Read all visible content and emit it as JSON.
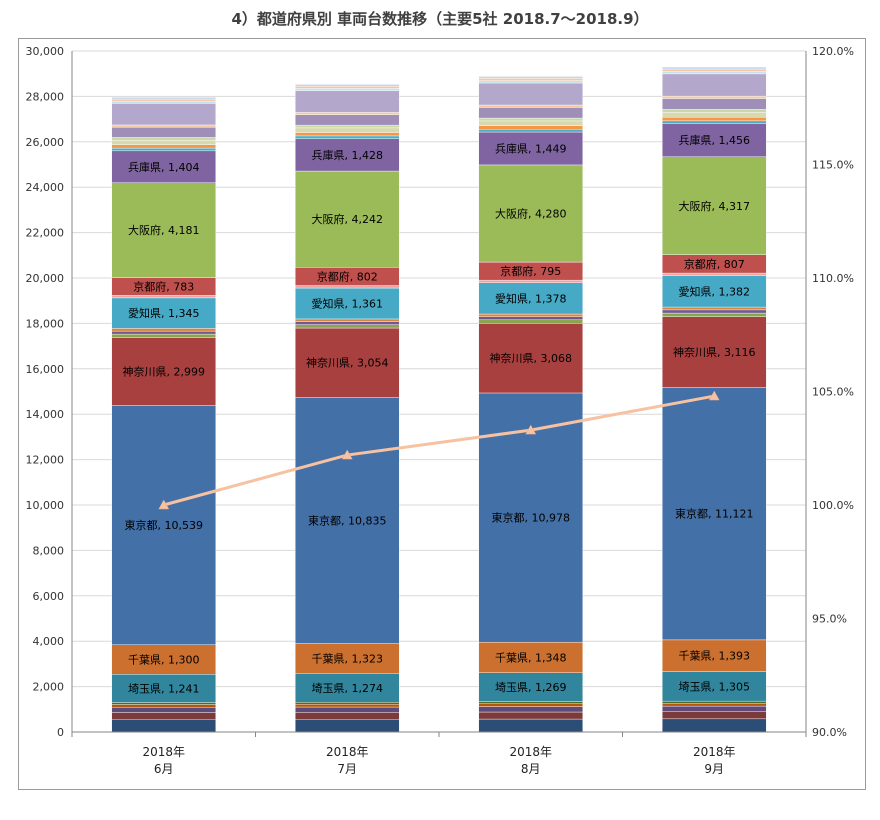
{
  "title": "4）都道府県別 車両台数推移（主要5社 2018.7～2018.9）",
  "chart_data": {
    "type": "bar",
    "stacked": true,
    "title": "4）都道府県別 車両台数推移（主要5社 2018.7～2018.9）",
    "categories": [
      "2018年\n6月",
      "2018年\n7月",
      "2018年\n8月",
      "2018年\n9月"
    ],
    "ylim": [
      0,
      30000
    ],
    "yticks": [
      "0",
      "2,000",
      "4,000",
      "6,000",
      "8,000",
      "10,000",
      "12,000",
      "14,000",
      "16,000",
      "18,000",
      "20,000",
      "22,000",
      "24,000",
      "26,000",
      "28,000",
      "30,000"
    ],
    "y2lim": [
      90,
      120
    ],
    "y2ticks": [
      "90.0%",
      "95.0%",
      "100.0%",
      "105.0%",
      "110.0%",
      "115.0%",
      "120.0%"
    ],
    "grid": true,
    "legend": "none",
    "series": [
      {
        "name": "",
        "values": [
          560,
          560,
          570,
          580
        ],
        "color": "#2c4d75",
        "labeled": false
      },
      {
        "name": "",
        "values": [
          300,
          305,
          310,
          315
        ],
        "color": "#7b3b3a",
        "labeled": false
      },
      {
        "name": "",
        "values": [
          230,
          235,
          240,
          245
        ],
        "color": "#5f4a7b",
        "labeled": false
      },
      {
        "name": "",
        "values": [
          120,
          120,
          125,
          125
        ],
        "color": "#b65708",
        "labeled": false
      },
      {
        "name": "",
        "values": [
          90,
          90,
          95,
          95
        ],
        "color": "#4d6b2a",
        "labeled": false
      },
      {
        "name": "埼玉県",
        "values": [
          1241,
          1274,
          1269,
          1305
        ],
        "color": "#31859c",
        "labeled": true
      },
      {
        "name": "千葉県",
        "values": [
          1300,
          1323,
          1348,
          1393
        ],
        "color": "#cc7030",
        "labeled": true
      },
      {
        "name": "東京都",
        "values": [
          10539,
          10835,
          10978,
          11121
        ],
        "color": "#4470a8",
        "labeled": true
      },
      {
        "name": "神奈川県",
        "values": [
          2999,
          3054,
          3068,
          3116
        ],
        "color": "#a7403e",
        "labeled": true
      },
      {
        "name": "",
        "values": [
          150,
          150,
          155,
          160
        ],
        "color": "#89a54e",
        "labeled": false
      },
      {
        "name": "",
        "values": [
          130,
          130,
          135,
          140
        ],
        "color": "#71588f",
        "labeled": false
      },
      {
        "name": "",
        "values": [
          120,
          120,
          120,
          125
        ],
        "color": "#db843d",
        "labeled": false
      },
      {
        "name": "愛知県",
        "values": [
          1345,
          1361,
          1378,
          1382
        ],
        "color": "#46a9c5",
        "labeled": true
      },
      {
        "name": "",
        "values": [
          110,
          110,
          115,
          115
        ],
        "color": "#f0a0a0",
        "labeled": false
      },
      {
        "name": "京都府",
        "values": [
          783,
          802,
          795,
          807
        ],
        "color": "#c0504d",
        "labeled": true
      },
      {
        "name": "大阪府",
        "values": [
          4181,
          4242,
          4280,
          4317
        ],
        "color": "#9bbb59",
        "labeled": true
      },
      {
        "name": "兵庫県",
        "values": [
          1404,
          1428,
          1449,
          1456
        ],
        "color": "#8064a2",
        "labeled": true
      },
      {
        "name": "",
        "values": [
          120,
          120,
          125,
          125
        ],
        "color": "#4bacc6",
        "labeled": false
      },
      {
        "name": "",
        "values": [
          150,
          150,
          155,
          160
        ],
        "color": "#f79646",
        "labeled": false
      },
      {
        "name": "",
        "values": [
          200,
          205,
          210,
          215
        ],
        "color": "#d9d9b0",
        "labeled": false
      },
      {
        "name": "",
        "values": [
          120,
          120,
          125,
          130
        ],
        "color": "#c8d8a8",
        "labeled": false
      },
      {
        "name": "",
        "values": [
          450,
          460,
          470,
          480
        ],
        "color": "#9f8fb8",
        "labeled": false
      },
      {
        "name": "",
        "values": [
          100,
          100,
          105,
          105
        ],
        "color": "#f2c9a0",
        "labeled": false
      },
      {
        "name": "",
        "values": [
          950,
          960,
          970,
          980
        ],
        "color": "#b3a8cc",
        "labeled": false
      },
      {
        "name": "",
        "values": [
          100,
          100,
          105,
          110
        ],
        "color": "#c8e0ea",
        "labeled": false
      },
      {
        "name": "",
        "values": [
          90,
          95,
          100,
          100
        ],
        "color": "#f5c6a5",
        "labeled": false
      },
      {
        "name": "",
        "values": [
          80,
          80,
          85,
          90
        ],
        "color": "#c5d6ee",
        "labeled": false
      }
    ],
    "line": {
      "name": "",
      "axis": "right",
      "values": [
        100.0,
        102.2,
        103.3,
        104.8
      ],
      "color": "#f6c2a2"
    }
  }
}
